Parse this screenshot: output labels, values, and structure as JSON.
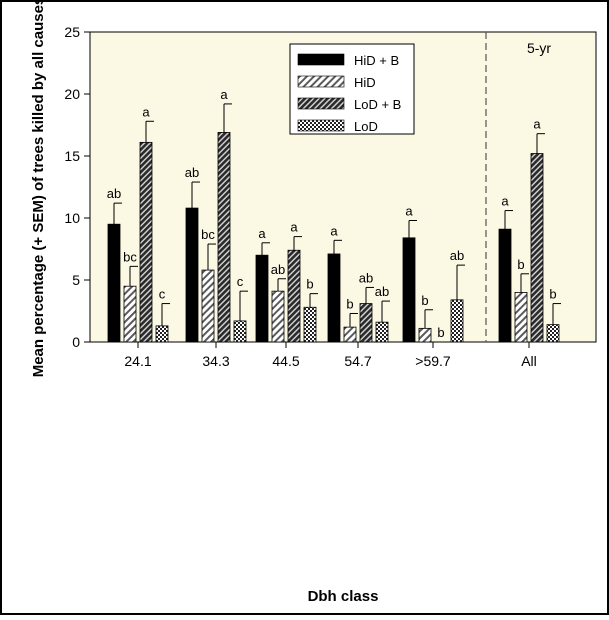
{
  "chart_data": {
    "type": "bar",
    "xlabel": "Dbh class",
    "ylabel": "Mean percentage (+ SEM) of trees killed by all causes",
    "ylim": [
      0,
      25
    ],
    "yticks": [
      0,
      5,
      10,
      15,
      20,
      25
    ],
    "categories": [
      "24.1",
      "34.3",
      "44.5",
      "54.7",
      ">59.7",
      "All"
    ],
    "separator_after_category": ">59.7",
    "annotation": "5-yr",
    "grid": false,
    "legend_position": "top-center",
    "plot_background": "#fbf8e4",
    "series": [
      {
        "name": "HiD + B",
        "pattern": "solid-black",
        "values": [
          9.5,
          10.8,
          7.0,
          7.1,
          8.4,
          9.1
        ],
        "sem": [
          1.7,
          2.1,
          1.0,
          1.1,
          1.4,
          1.5
        ],
        "labels": [
          "ab",
          "ab",
          "a",
          "a",
          "a",
          "a"
        ]
      },
      {
        "name": "HiD",
        "pattern": "light-diagonal-hatch",
        "values": [
          4.5,
          5.8,
          4.1,
          1.2,
          1.1,
          4.0
        ],
        "sem": [
          1.6,
          2.1,
          1.0,
          1.1,
          1.5,
          1.5
        ],
        "labels": [
          "bc",
          "bc",
          "ab",
          "b",
          "b",
          "b"
        ]
      },
      {
        "name": "LoD + B",
        "pattern": "dark-diagonal-hatch",
        "values": [
          16.1,
          16.9,
          7.4,
          3.1,
          0.0,
          15.2
        ],
        "sem": [
          1.7,
          2.3,
          1.1,
          1.3,
          0.0,
          1.6
        ],
        "labels": [
          "a",
          "a",
          "a",
          "ab",
          "b",
          "a"
        ]
      },
      {
        "name": "LoD",
        "pattern": "crosshatch",
        "values": [
          1.3,
          1.7,
          2.8,
          1.6,
          3.4,
          1.4
        ],
        "sem": [
          1.8,
          2.4,
          1.1,
          1.7,
          2.8,
          1.7
        ],
        "labels": [
          "c",
          "c",
          "b",
          "ab",
          "ab",
          "b"
        ]
      }
    ]
  }
}
